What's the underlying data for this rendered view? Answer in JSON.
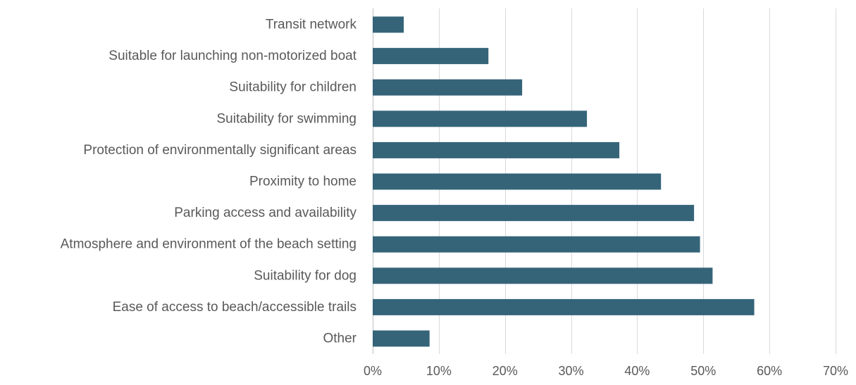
{
  "chart_data": {
    "type": "bar",
    "orientation": "horizontal",
    "title": "",
    "xlabel": "",
    "ylabel": "",
    "categories": [
      "Transit network",
      "Suitable for launching non-motorized boat",
      "Suitability for children",
      "Suitability for swimming",
      "Protection of environmentally significant areas",
      "Proximity to home",
      "Parking access and availability",
      "Atmosphere and environment of the beach setting",
      "Suitability for dog",
      "Ease of access to beach/accessible trails",
      "Other"
    ],
    "values": [
      0.047,
      0.175,
      0.226,
      0.324,
      0.373,
      0.436,
      0.486,
      0.495,
      0.514,
      0.577,
      0.086
    ],
    "xlim": [
      0,
      0.7
    ],
    "x_ticks": [
      0,
      0.1,
      0.2,
      0.3,
      0.4,
      0.5,
      0.6,
      0.7
    ],
    "x_tick_labels": [
      "0%",
      "10%",
      "20%",
      "30%",
      "40%",
      "50%",
      "60%",
      "70%"
    ],
    "grid": "vertical",
    "legend": "none",
    "bar_color": "#356479"
  }
}
